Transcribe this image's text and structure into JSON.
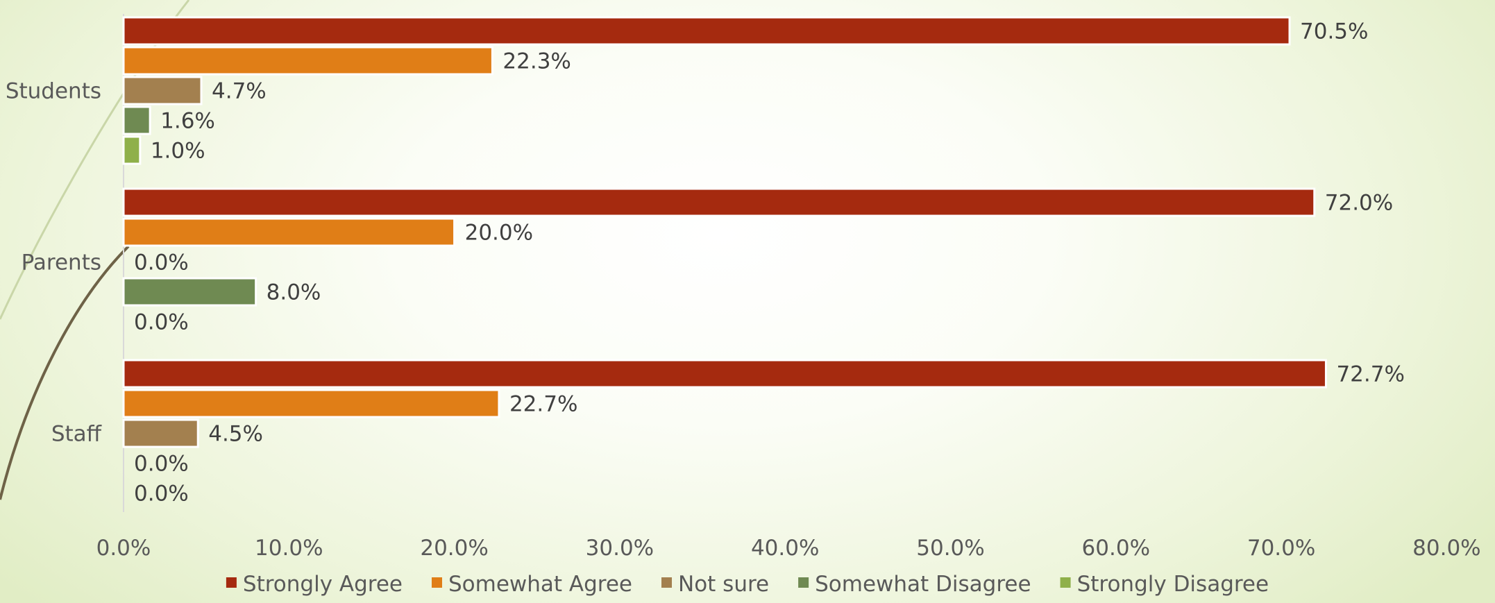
{
  "chart_data": {
    "type": "bar",
    "orientation": "horizontal",
    "categories": [
      "Students",
      "Parents",
      "Staff"
    ],
    "series": [
      {
        "name": "Strongly Agree",
        "color": "#A52A0F",
        "values": [
          70.5,
          72.0,
          72.7
        ],
        "labels": [
          "70.5%",
          "72.0%",
          "72.7%"
        ]
      },
      {
        "name": "Somewhat Agree",
        "color": "#E07E17",
        "values": [
          22.3,
          20.0,
          22.7
        ],
        "labels": [
          "22.3%",
          "20.0%",
          "22.7%"
        ]
      },
      {
        "name": "Not sure",
        "color": "#A3804F",
        "values": [
          4.7,
          0.0,
          4.5
        ],
        "labels": [
          "4.7%",
          "0.0%",
          "4.5%"
        ]
      },
      {
        "name": "Somewhat Disagree",
        "color": "#6F8A52",
        "values": [
          1.6,
          8.0,
          0.0
        ],
        "labels": [
          "1.6%",
          "8.0%",
          "0.0%"
        ]
      },
      {
        "name": "Strongly Disagree",
        "color": "#8FB04A",
        "values": [
          1.0,
          0.0,
          0.0
        ],
        "labels": [
          "1.0%",
          "0.0%",
          "0.0%"
        ]
      }
    ],
    "xlim": [
      0,
      80
    ],
    "x_ticks": [
      "0.0%",
      "10.0%",
      "20.0%",
      "30.0%",
      "40.0%",
      "50.0%",
      "60.0%",
      "70.0%",
      "80.0%"
    ],
    "legend_position": "bottom",
    "grid": false
  }
}
